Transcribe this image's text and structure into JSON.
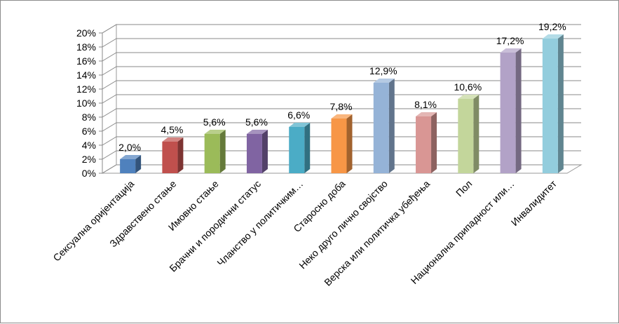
{
  "chart_data": {
    "type": "bar",
    "style": "3d-column",
    "categories": [
      "Сексуална оријентација",
      "Здравствено стање",
      "Имовно стање",
      "Брачни и породични статус",
      "Чланство у политичким…",
      "Старосно доба",
      "Неко друго лично својство",
      "Верска или политичка убеђења",
      "Пол",
      "Национална припадност или…",
      "Инвалидитет"
    ],
    "values": [
      2.0,
      4.5,
      5.6,
      5.6,
      6.6,
      7.8,
      12.9,
      8.1,
      10.6,
      17.2,
      19.2
    ],
    "data_labels": [
      "2,0%",
      "4,5%",
      "5,6%",
      "5,6%",
      "6,6%",
      "7,8%",
      "12,9%",
      "8,1%",
      "10,6%",
      "17,2%",
      "19,2%"
    ],
    "colors": [
      "#4f81bd",
      "#c0504d",
      "#9bbb59",
      "#8064a2",
      "#4bacc6",
      "#f79646",
      "#95b3d7",
      "#d99694",
      "#c3d69b",
      "#b2a2c7",
      "#93cddd"
    ],
    "y_ticks": [
      "0%",
      "2%",
      "4%",
      "6%",
      "8%",
      "10%",
      "12%",
      "14%",
      "16%",
      "18%",
      "20%"
    ],
    "ylim": [
      0,
      20
    ],
    "grid": true,
    "legend": "none",
    "title": "",
    "xlabel": "",
    "ylabel": ""
  }
}
